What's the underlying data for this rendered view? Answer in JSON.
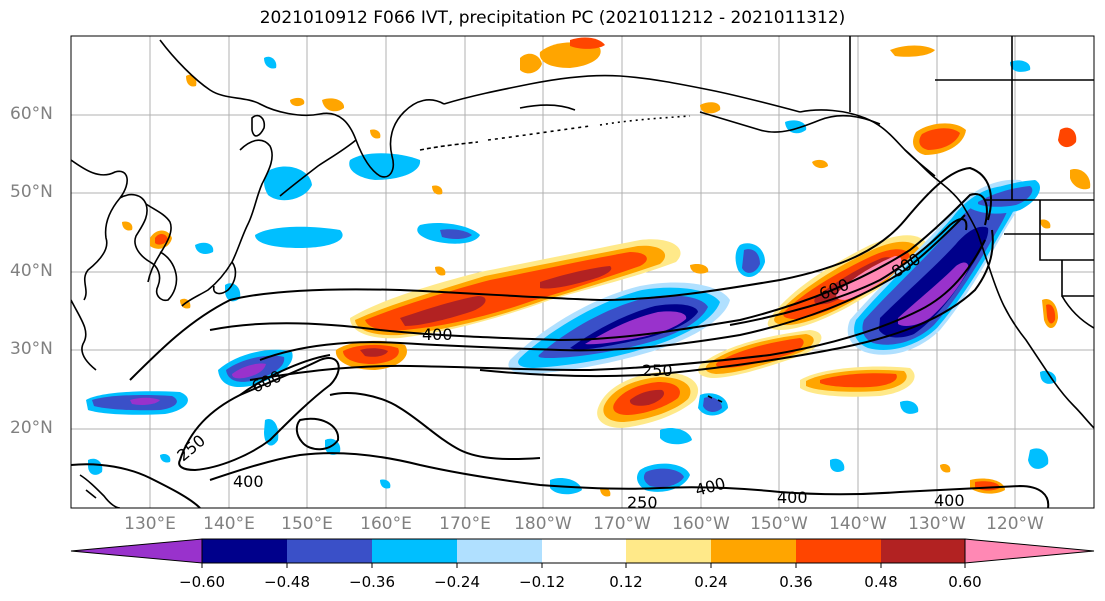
{
  "title": "2021010912 F066 IVT, precipitation PC (2021011212 - 2021011312)",
  "lat_labels": [
    "60°N",
    "50°N",
    "40°N",
    "30°N",
    "20°N"
  ],
  "lon_labels": [
    "130°E",
    "140°E",
    "150°E",
    "160°E",
    "170°E",
    "180°W",
    "170°W",
    "160°W",
    "150°W",
    "140°W",
    "130°W",
    "120°W"
  ],
  "ivt_contour_labels": [
    "400",
    "600",
    "250",
    "600",
    "800",
    "250",
    "400",
    "400",
    "250",
    "400",
    "400"
  ],
  "colorbar": {
    "ticks": [
      "−0.60",
      "−0.48",
      "−0.36",
      "−0.24",
      "−0.12",
      "0.12",
      "0.24",
      "0.36",
      "0.48",
      "0.60"
    ],
    "colors": [
      "#9932cc",
      "#00008b",
      "#3a50c8",
      "#00bfff",
      "#b0e0ff",
      "#ffffff",
      "#ffe989",
      "#ffa500",
      "#ff4500",
      "#b22222",
      "#ff88b4"
    ]
  },
  "map_colors": {
    "coast": "#000000",
    "grid": "#b0b0b0",
    "contour": "#000000"
  }
}
